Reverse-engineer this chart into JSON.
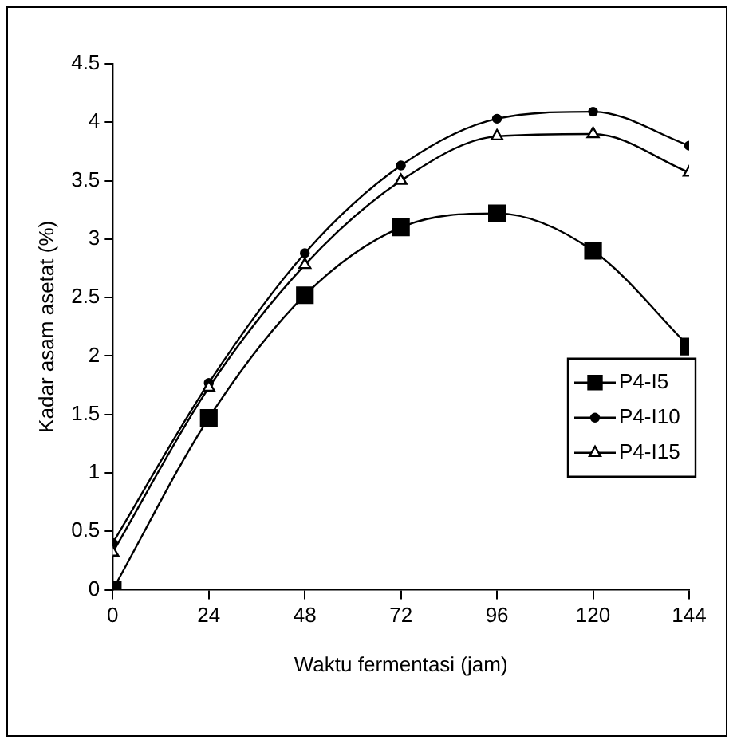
{
  "chart_data": {
    "type": "line",
    "xlabel": "Waktu fermentasi (jam)",
    "ylabel": "Kadar asam asetat (%)",
    "x": [
      0,
      24,
      48,
      72,
      96,
      120,
      144
    ],
    "series": [
      {
        "name": "P4-I5",
        "color": "#000000",
        "marker": "square",
        "values": [
          0,
          1.47,
          2.52,
          3.1,
          3.22,
          2.9,
          2.08
        ]
      },
      {
        "name": "P4-I10",
        "color": "#000000",
        "marker": "circle",
        "values": [
          0.4,
          1.77,
          2.88,
          3.63,
          4.03,
          4.09,
          3.8
        ]
      },
      {
        "name": "P4-I15",
        "color": "#000000",
        "marker": "triangle",
        "values": [
          0.32,
          1.73,
          2.78,
          3.5,
          3.88,
          3.9,
          3.57
        ]
      }
    ],
    "xlim": [
      0,
      144
    ],
    "xticks": [
      0,
      24,
      48,
      72,
      96,
      120,
      144
    ],
    "ylim": [
      0,
      4.5
    ],
    "yticks": [
      0,
      0.5,
      1,
      1.5,
      2,
      2.5,
      3,
      3.5,
      4,
      4.5
    ],
    "grid": false,
    "legend": "right",
    "line_style": "solid"
  }
}
